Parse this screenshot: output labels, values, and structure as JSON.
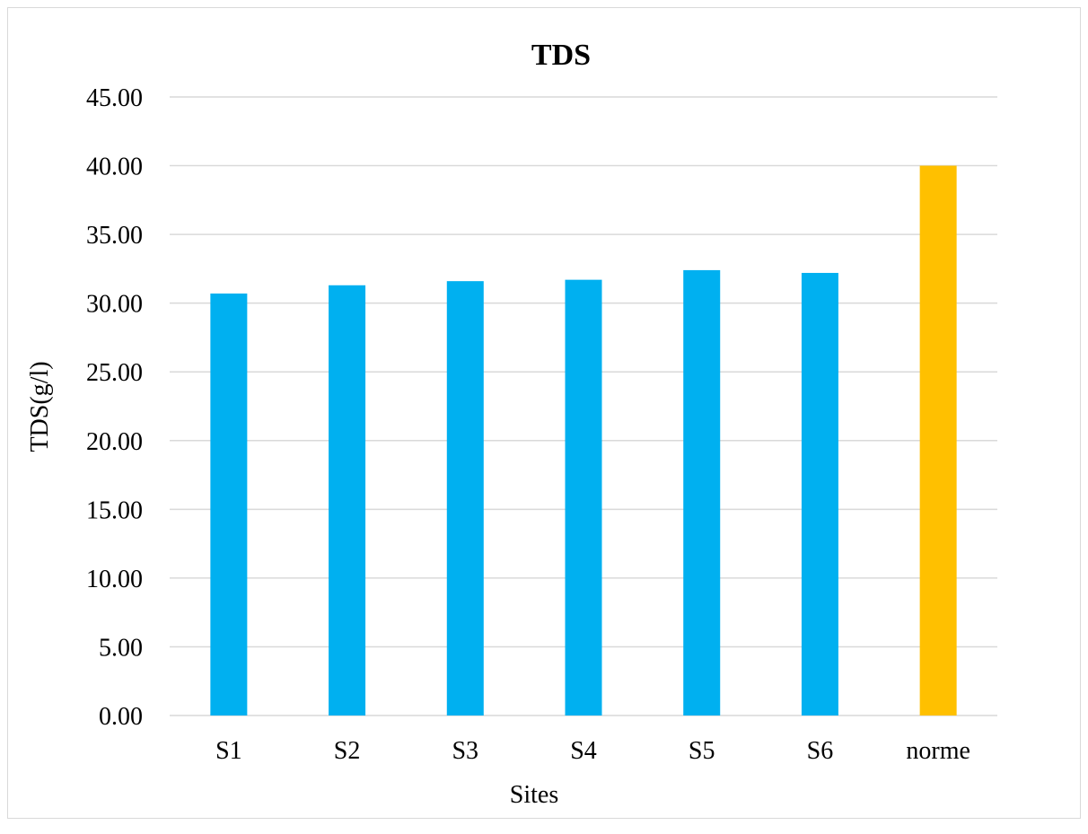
{
  "chart_data": {
    "type": "bar",
    "title": "TDS",
    "xlabel": "Sites",
    "ylabel": "TDS(g/l)",
    "categories": [
      "S1",
      "S2",
      "S3",
      "S4",
      "S5",
      "S6",
      "norme"
    ],
    "values": [
      30.7,
      31.3,
      31.6,
      31.7,
      32.4,
      32.2,
      40.0
    ],
    "bar_colors": [
      "#00b0f0",
      "#00b0f0",
      "#00b0f0",
      "#00b0f0",
      "#00b0f0",
      "#00b0f0",
      "#ffc000"
    ],
    "ylim": [
      0,
      45
    ],
    "yticks": [
      "0.00",
      "5.00",
      "10.00",
      "15.00",
      "20.00",
      "25.00",
      "30.00",
      "35.00",
      "40.00",
      "45.00"
    ],
    "grid": true,
    "gridline_color": "#d9d9d9"
  }
}
